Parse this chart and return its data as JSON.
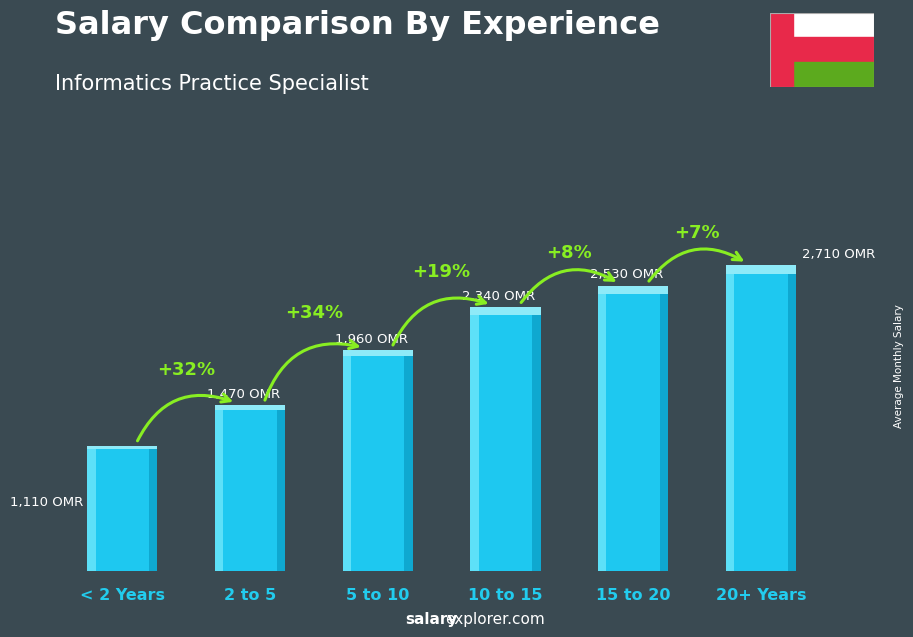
{
  "title": "Salary Comparison By Experience",
  "subtitle": "Informatics Practice Specialist",
  "categories": [
    "< 2 Years",
    "2 to 5",
    "5 to 10",
    "10 to 15",
    "15 to 20",
    "20+ Years"
  ],
  "values": [
    1110,
    1470,
    1960,
    2340,
    2530,
    2710
  ],
  "labels": [
    "1,110 OMR",
    "1,470 OMR",
    "1,960 OMR",
    "2,340 OMR",
    "2,530 OMR",
    "2,710 OMR"
  ],
  "pct_labels": [
    "+32%",
    "+34%",
    "+19%",
    "+8%",
    "+7%"
  ],
  "bar_color_main": "#1ec8f0",
  "bar_color_left": "#5de0f8",
  "bar_color_right": "#0fa8d0",
  "bar_color_top": "#8eeaf8",
  "pct_color": "#88ee22",
  "arrow_color": "#88ee22",
  "title_color": "#ffffff",
  "subtitle_color": "#ffffff",
  "label_color": "#ffffff",
  "cat_color": "#22ccee",
  "ylabel_text": "Average Monthly Salary",
  "footer_bold": "salary",
  "footer_normal": "explorer.com",
  "bg_color": "#3a4a52",
  "flag_white": "#ffffff",
  "flag_red": "#e8294a",
  "flag_green": "#5caa1e",
  "ylim_max": 3300,
  "bar_width": 0.55
}
